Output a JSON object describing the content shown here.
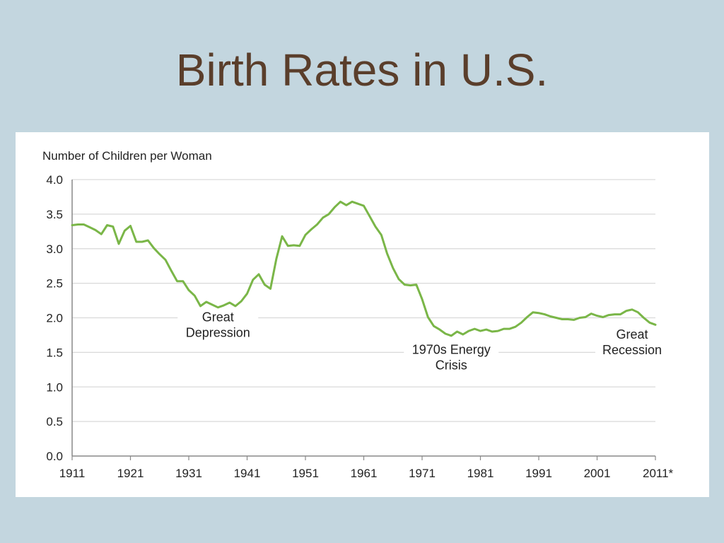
{
  "slide": {
    "title": "Birth Rates in U.S."
  },
  "chart_data": {
    "type": "line",
    "title": "",
    "ylabel": "Number of Children per Woman",
    "xlabel": "",
    "xlim": [
      1911,
      2011
    ],
    "ylim": [
      0,
      4.0
    ],
    "yticks": [
      0.0,
      0.5,
      1.0,
      1.5,
      2.0,
      2.5,
      3.0,
      3.5,
      4.0
    ],
    "ytick_labels": [
      "0.0",
      "0.5",
      "1.0",
      "1.5",
      "2.0",
      "2.5",
      "3.0",
      "3.5",
      "4.0"
    ],
    "xticks": [
      1911,
      1921,
      1931,
      1941,
      1951,
      1961,
      1971,
      1981,
      1991,
      2001,
      2011
    ],
    "xtick_labels": [
      "1911",
      "1921",
      "1931",
      "1941",
      "1951",
      "1961",
      "1971",
      "1981",
      "1991",
      "2001",
      "2011*"
    ],
    "grid": true,
    "line_color": "#7ab648",
    "series": [
      {
        "name": "Number of Children per Woman",
        "x": [
          1911,
          1912,
          1913,
          1914,
          1915,
          1916,
          1917,
          1918,
          1919,
          1920,
          1921,
          1922,
          1923,
          1924,
          1925,
          1926,
          1927,
          1928,
          1929,
          1930,
          1931,
          1932,
          1933,
          1934,
          1935,
          1936,
          1937,
          1938,
          1939,
          1940,
          1941,
          1942,
          1943,
          1944,
          1945,
          1946,
          1947,
          1948,
          1949,
          1950,
          1951,
          1952,
          1953,
          1954,
          1955,
          1956,
          1957,
          1958,
          1959,
          1960,
          1961,
          1962,
          1963,
          1964,
          1965,
          1966,
          1967,
          1968,
          1969,
          1970,
          1971,
          1972,
          1973,
          1974,
          1975,
          1976,
          1977,
          1978,
          1979,
          1980,
          1981,
          1982,
          1983,
          1984,
          1985,
          1986,
          1987,
          1988,
          1989,
          1990,
          1991,
          1992,
          1993,
          1994,
          1995,
          1996,
          1997,
          1998,
          1999,
          2000,
          2001,
          2002,
          2003,
          2004,
          2005,
          2006,
          2007,
          2008,
          2009,
          2010,
          2011
        ],
        "values": [
          3.34,
          3.35,
          3.35,
          3.31,
          3.27,
          3.21,
          3.34,
          3.32,
          3.07,
          3.26,
          3.33,
          3.1,
          3.1,
          3.12,
          3.01,
          2.92,
          2.84,
          2.68,
          2.53,
          2.53,
          2.4,
          2.32,
          2.17,
          2.23,
          2.19,
          2.15,
          2.18,
          2.22,
          2.17,
          2.24,
          2.35,
          2.55,
          2.63,
          2.48,
          2.42,
          2.85,
          3.18,
          3.04,
          3.05,
          3.04,
          3.2,
          3.28,
          3.35,
          3.45,
          3.5,
          3.6,
          3.68,
          3.63,
          3.68,
          3.65,
          3.62,
          3.47,
          3.32,
          3.2,
          2.93,
          2.72,
          2.56,
          2.48,
          2.47,
          2.48,
          2.27,
          2.01,
          1.88,
          1.83,
          1.77,
          1.74,
          1.8,
          1.76,
          1.81,
          1.84,
          1.81,
          1.83,
          1.8,
          1.81,
          1.84,
          1.84,
          1.87,
          1.93,
          2.01,
          2.08,
          2.07,
          2.05,
          2.02,
          2.0,
          1.98,
          1.98,
          1.97,
          2.0,
          2.01,
          2.06,
          2.03,
          2.01,
          2.04,
          2.05,
          2.05,
          2.1,
          2.12,
          2.08,
          2.0,
          1.93,
          1.9
        ]
      }
    ],
    "annotations": [
      {
        "lines": [
          "Great",
          "Depression"
        ],
        "x": 1936,
        "y": 1.95
      },
      {
        "lines": [
          "1970s Energy",
          "Crisis"
        ],
        "x": 1976,
        "y": 1.48
      },
      {
        "lines": [
          "Great",
          "Recession"
        ],
        "x": 2007,
        "y": 1.7
      }
    ]
  }
}
